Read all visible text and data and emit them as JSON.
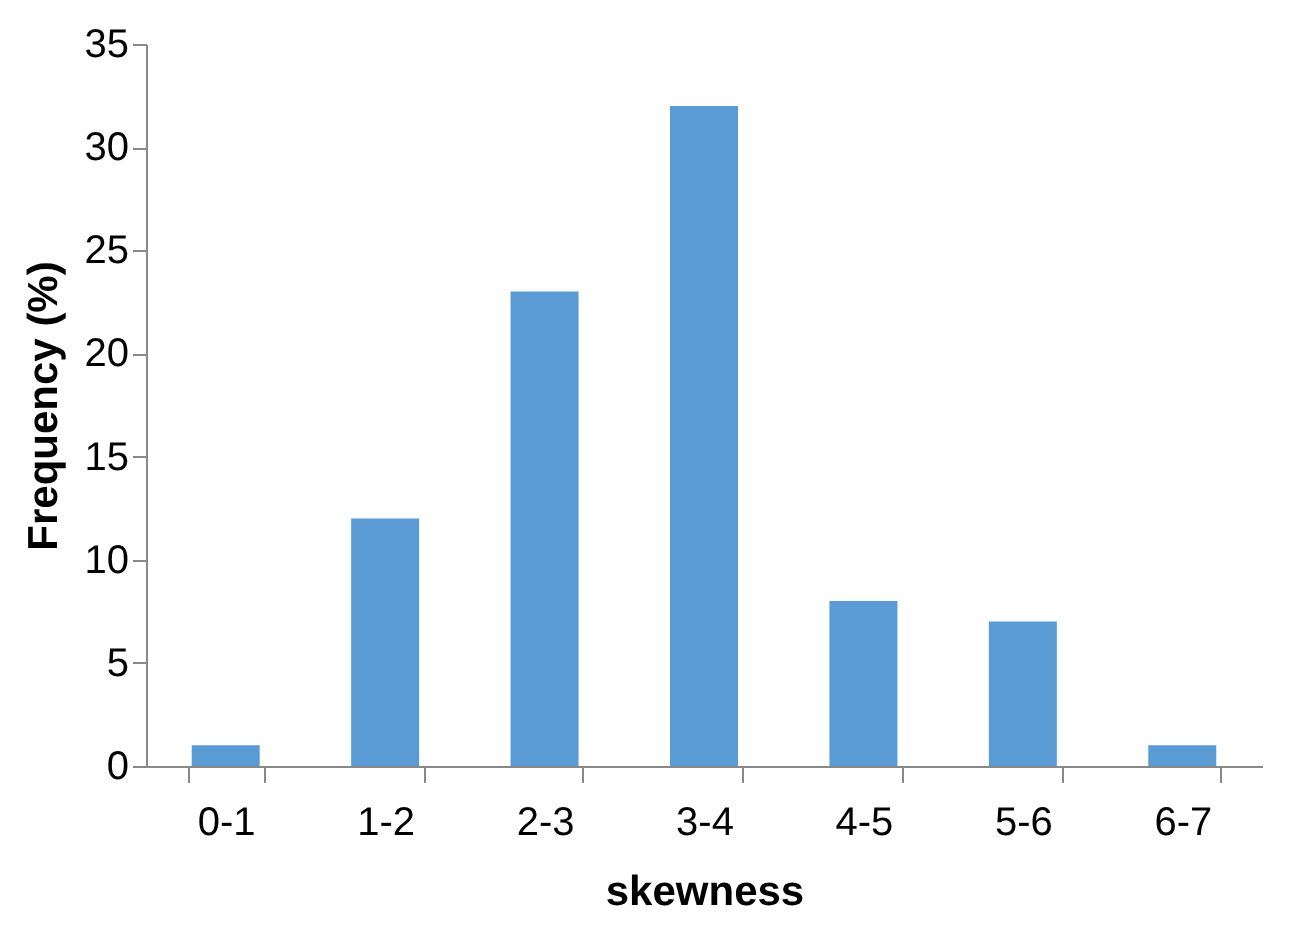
{
  "chart_data": {
    "type": "bar",
    "xlabel": "skewness",
    "ylabel": "Frequency (%)",
    "categories": [
      "0-1",
      "1-2",
      "2-3",
      "3-4",
      "4-5",
      "5-6",
      "6-7"
    ],
    "values": [
      1,
      12,
      23,
      32,
      8,
      7,
      1
    ],
    "color": "#5b9bd5",
    "ylim": [
      0,
      35
    ],
    "yticks": [
      0,
      5,
      10,
      15,
      20,
      25,
      30,
      35
    ],
    "grid": false
  }
}
